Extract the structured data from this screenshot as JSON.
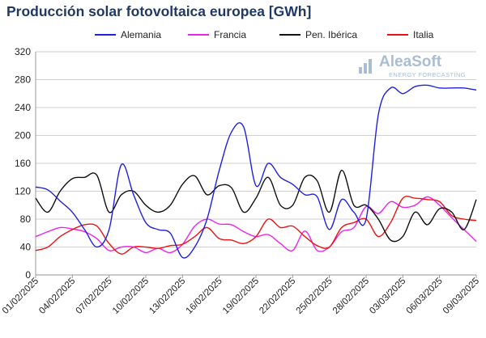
{
  "colors": {
    "Alemania": "#2020e0",
    "Francia": "#ee22ee",
    "Pen. Ibérica": "#111111",
    "Italia": "#ee1111",
    "title": "#1f3864",
    "grid": "#cfcfcf",
    "logo": "#a9bdd3"
  },
  "logo": {
    "name": "AleaSoft",
    "tagline": "ENERGY FORECASTING",
    "icon": "aleasoft-logo-icon"
  },
  "chart_data": {
    "type": "line",
    "title": "Producción solar fotovoltaica europea [GWh]",
    "xlabel": "",
    "ylabel": "",
    "ylim": [
      0,
      320
    ],
    "yticks": [
      0,
      40,
      80,
      120,
      160,
      200,
      240,
      280,
      320
    ],
    "grid": "horizontal",
    "legend_position": "top",
    "x": [
      "01/02/2025",
      "02/02/2025",
      "03/02/2025",
      "04/02/2025",
      "05/02/2025",
      "06/02/2025",
      "07/02/2025",
      "08/02/2025",
      "09/02/2025",
      "10/02/2025",
      "11/02/2025",
      "12/02/2025",
      "13/02/2025",
      "14/02/2025",
      "15/02/2025",
      "16/02/2025",
      "17/02/2025",
      "18/02/2025",
      "19/02/2025",
      "20/02/2025",
      "21/02/2025",
      "22/02/2025",
      "23/02/2025",
      "24/02/2025",
      "25/02/2025",
      "26/02/2025",
      "27/02/2025",
      "28/02/2025",
      "01/03/2025",
      "02/03/2025",
      "03/03/2025",
      "04/03/2025",
      "05/03/2025",
      "06/03/2025",
      "07/03/2025",
      "08/03/2025",
      "09/03/2025"
    ],
    "xtick_labels": [
      "01/02/2025",
      "04/02/2025",
      "07/02/2025",
      "10/02/2025",
      "13/02/2025",
      "16/02/2025",
      "19/02/2025",
      "22/02/2025",
      "25/02/2025",
      "28/02/2025",
      "03/03/2025",
      "06/03/2025",
      "09/03/2025"
    ],
    "series": [
      {
        "name": "Alemania",
        "values": [
          126,
          122,
          106,
          90,
          65,
          40,
          65,
          158,
          115,
          75,
          65,
          60,
          25,
          40,
          80,
          150,
          205,
          212,
          128,
          160,
          140,
          130,
          115,
          112,
          65,
          108,
          90,
          80,
          230,
          268,
          260,
          270,
          272,
          268,
          268,
          268,
          265
        ]
      },
      {
        "name": "Francia",
        "values": [
          55,
          62,
          68,
          66,
          62,
          52,
          35,
          40,
          40,
          32,
          38,
          32,
          44,
          70,
          80,
          73,
          72,
          62,
          55,
          58,
          45,
          35,
          63,
          35,
          40,
          62,
          68,
          98,
          88,
          105,
          97,
          100,
          112,
          100,
          82,
          65,
          48
        ]
      },
      {
        "name": "Pen. Ibérica",
        "values": [
          110,
          90,
          120,
          138,
          140,
          143,
          90,
          115,
          120,
          100,
          90,
          100,
          130,
          142,
          115,
          128,
          125,
          90,
          110,
          140,
          100,
          100,
          140,
          135,
          90,
          150,
          100,
          100,
          80,
          50,
          55,
          90,
          72,
          95,
          90,
          65,
          108
        ]
      },
      {
        "name": "Italia",
        "values": [
          35,
          40,
          55,
          65,
          72,
          70,
          45,
          30,
          40,
          40,
          38,
          42,
          44,
          55,
          68,
          52,
          50,
          45,
          55,
          80,
          68,
          70,
          55,
          42,
          40,
          68,
          75,
          80,
          55,
          75,
          110,
          110,
          108,
          105,
          85,
          80,
          78
        ]
      }
    ]
  }
}
